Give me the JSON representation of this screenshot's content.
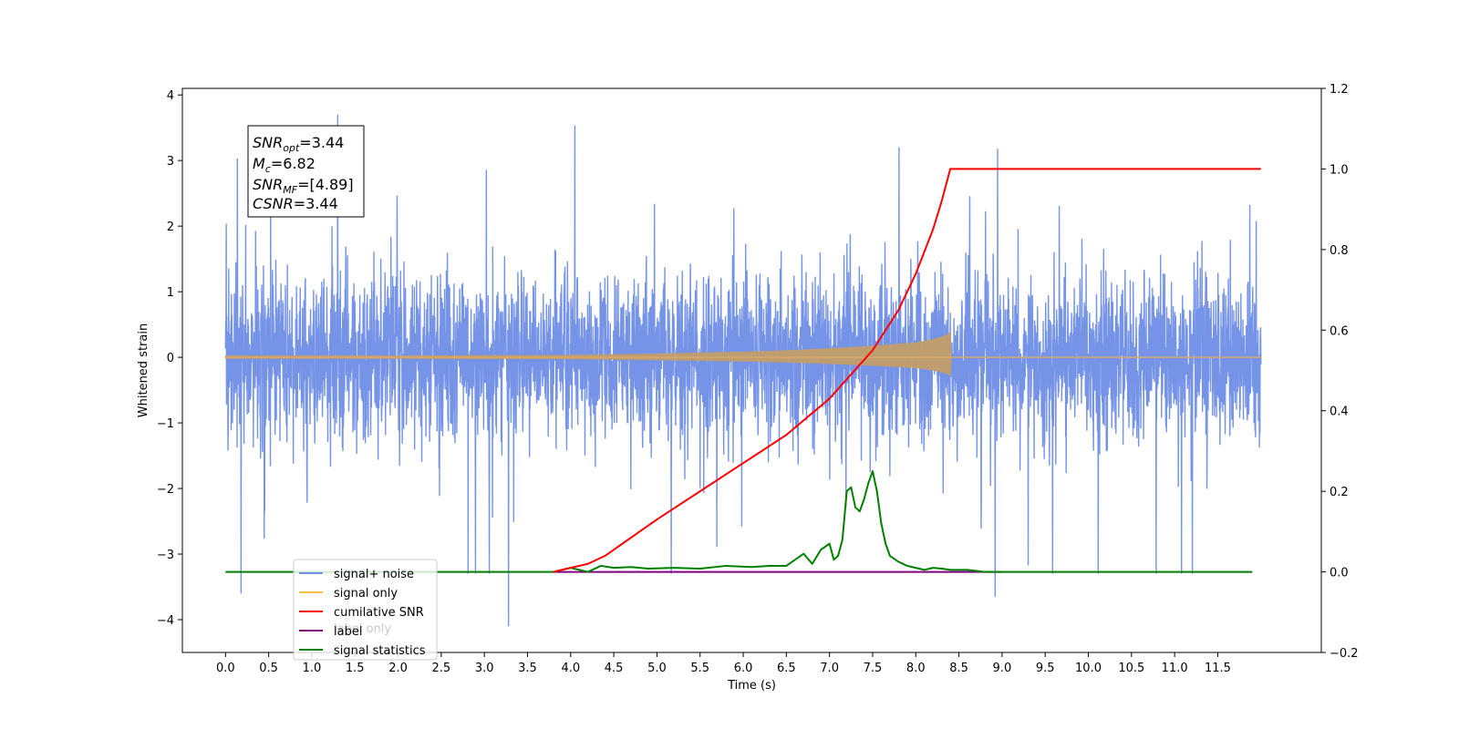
{
  "chart_data": {
    "type": "line",
    "xlabel": "Time (s)",
    "ylabel_left": "Whitened strain",
    "ylabel_right": "",
    "xlim": [
      -0.5,
      12.7
    ],
    "ylim_left": [
      -4.5,
      4.1
    ],
    "ylim_right": [
      -0.2,
      1.2
    ],
    "x_ticks": [
      0.0,
      0.5,
      1.0,
      1.5,
      2.0,
      2.5,
      3.0,
      3.5,
      4.0,
      4.5,
      5.0,
      5.5,
      6.0,
      6.5,
      7.0,
      7.5,
      8.0,
      8.5,
      9.0,
      9.5,
      10.0,
      10.5,
      11.0,
      11.5
    ],
    "x_tick_labels": [
      "0.0",
      "0.5",
      "1.0",
      "1.5",
      "2.0",
      "2.5",
      "3.0",
      "3.5",
      "4.0",
      "4.5",
      "5.0",
      "5.5",
      "6.0",
      "6.5",
      "7.0",
      "7.5",
      "8.0",
      "8.5",
      "9.0",
      "9.5",
      "10.0",
      "10.5",
      "11.0",
      "11.5"
    ],
    "y_left_ticks": [
      -4,
      -3,
      -2,
      -1,
      0,
      1,
      2,
      3,
      4
    ],
    "y_left_tick_labels": [
      "−4",
      "−3",
      "−2",
      "−1",
      "0",
      "1",
      "2",
      "3",
      "4"
    ],
    "y_right_ticks": [
      -0.2,
      0.0,
      0.2,
      0.4,
      0.6,
      0.8,
      1.0,
      1.2
    ],
    "y_right_tick_labels": [
      "−0.2",
      "0.0",
      "0.2",
      "0.4",
      "0.6",
      "0.8",
      "1.0",
      "1.2"
    ],
    "grid": false,
    "legend_position": "lower-left",
    "legend": [
      {
        "label": "signal+ noise",
        "color": "#6f8ee6"
      },
      {
        "label": "signal only",
        "color": "#ffbf40"
      },
      {
        "label": "cumilative SNR",
        "color": "#ff0000"
      },
      {
        "label": "label",
        "color": "#800080"
      },
      {
        "label": "signal statistics",
        "color": "#008000"
      }
    ],
    "legend_ghost_text": "label only",
    "series": [
      {
        "name": "signal+ noise",
        "axis": "left",
        "color": "#6f8ee6",
        "style": "dense noise",
        "x_range": [
          0.0,
          12.0
        ],
        "typical_range": [
          -1.5,
          1.5
        ],
        "peak_spikes": [
          {
            "x": 0.18,
            "y": -3.6
          },
          {
            "x": 1.3,
            "y": 3.7
          },
          {
            "x": 3.28,
            "y": -4.1
          },
          {
            "x": 4.05,
            "y": 3.53
          },
          {
            "x": 8.92,
            "y": -3.65
          },
          {
            "x": 8.95,
            "y": 3.18
          },
          {
            "x": 11.08,
            "y": -3.3
          }
        ]
      },
      {
        "name": "signal only",
        "axis": "left",
        "color": "#ffbf40",
        "style": "chirp envelope",
        "x": [
          0.0,
          2.0,
          4.0,
          5.0,
          6.0,
          6.5,
          7.0,
          7.5,
          8.0,
          8.2,
          8.35,
          8.4,
          8.41,
          12.0
        ],
        "envelope": [
          0.02,
          0.02,
          0.03,
          0.05,
          0.08,
          0.1,
          0.13,
          0.17,
          0.22,
          0.27,
          0.33,
          0.38,
          0.0,
          0.0
        ]
      },
      {
        "name": "cumilative SNR",
        "axis": "right",
        "color": "#ff0000",
        "x": [
          3.8,
          4.0,
          4.2,
          4.4,
          4.6,
          4.8,
          5.0,
          5.5,
          6.0,
          6.5,
          7.0,
          7.5,
          7.8,
          8.0,
          8.2,
          8.3,
          8.4,
          8.41,
          12.0
        ],
        "values": [
          0.0,
          0.01,
          0.02,
          0.04,
          0.07,
          0.1,
          0.13,
          0.2,
          0.27,
          0.34,
          0.43,
          0.55,
          0.65,
          0.74,
          0.85,
          0.92,
          1.0,
          1.0,
          1.0
        ]
      },
      {
        "name": "label",
        "axis": "right",
        "color": "#800080",
        "x": [
          3.8,
          9.0
        ],
        "values": [
          0.0,
          0.0
        ]
      },
      {
        "name": "signal statistics",
        "axis": "right",
        "color": "#008000",
        "x": [
          0.0,
          3.5,
          3.8,
          4.0,
          4.2,
          4.35,
          4.5,
          4.7,
          4.9,
          5.2,
          5.5,
          5.8,
          6.1,
          6.3,
          6.5,
          6.6,
          6.7,
          6.8,
          6.9,
          7.0,
          7.05,
          7.1,
          7.15,
          7.2,
          7.25,
          7.3,
          7.35,
          7.4,
          7.45,
          7.5,
          7.55,
          7.6,
          7.65,
          7.7,
          7.8,
          7.9,
          8.0,
          8.1,
          8.2,
          8.3,
          8.4,
          8.6,
          8.8,
          9.0,
          9.2,
          11.9
        ],
        "values": [
          0.0,
          0.0,
          0.0,
          0.01,
          0.0,
          0.015,
          0.01,
          0.012,
          0.008,
          0.01,
          0.008,
          0.015,
          0.012,
          0.015,
          0.015,
          0.03,
          0.045,
          0.02,
          0.055,
          0.07,
          0.03,
          0.04,
          0.08,
          0.2,
          0.21,
          0.16,
          0.15,
          0.18,
          0.22,
          0.25,
          0.2,
          0.12,
          0.07,
          0.04,
          0.025,
          0.015,
          0.01,
          0.005,
          0.01,
          0.008,
          0.005,
          0.005,
          0.0,
          0.0,
          0.0,
          0.0
        ]
      }
    ]
  },
  "info_box": {
    "snr_opt_var": "SNR",
    "snr_opt_sub": "opt",
    "snr_opt_value": "=3.44",
    "mc_var": "M",
    "mc_sub": "c",
    "mc_value": "=6.82",
    "snr_mf_var": "SNR",
    "snr_mf_sub": "MF",
    "snr_mf_value": "=[4.89]",
    "csnr_var": "CSNR",
    "csnr_value": "=3.44"
  }
}
